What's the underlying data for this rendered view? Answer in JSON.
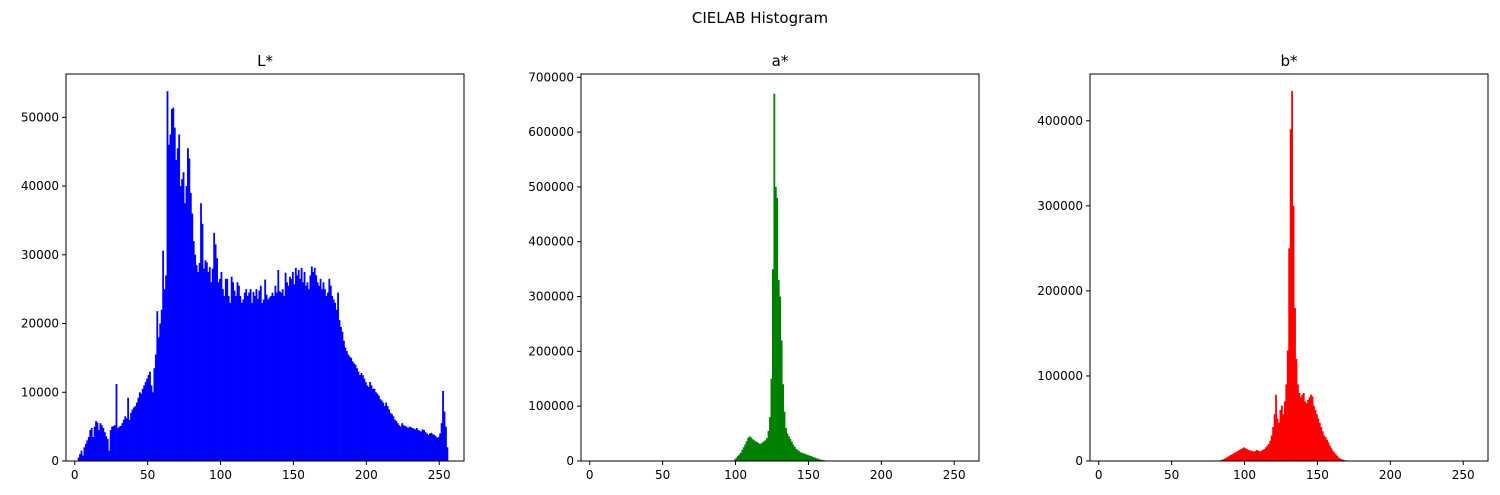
{
  "figure": {
    "suptitle": "CIELAB Histogram"
  },
  "chart_data": [
    {
      "type": "bar",
      "title": "L*",
      "xlabel": "",
      "ylabel": "",
      "color": "#0000ff",
      "xlim": [
        -6,
        267
      ],
      "ylim": [
        0,
        56300
      ],
      "xticks": [
        0,
        50,
        100,
        150,
        200,
        250
      ],
      "yticks": [
        0,
        10000,
        20000,
        30000,
        40000,
        50000
      ],
      "bins": {
        "start": 0,
        "width": 1,
        "values": [
          0,
          0,
          500,
          1000,
          1500,
          800,
          2000,
          2500,
          3000,
          3500,
          4500,
          4800,
          3500,
          5000,
          5800,
          5600,
          4500,
          5500,
          5200,
          4800,
          4200,
          3600,
          3200,
          1500,
          4500,
          5000,
          5100,
          5200,
          11200,
          4800,
          5000,
          5100,
          5500,
          6000,
          6500,
          6200,
          9200,
          6000,
          7000,
          7500,
          7800,
          8000,
          8500,
          9200,
          10000,
          9800,
          10500,
          11000,
          11500,
          12000,
          12500,
          13000,
          11000,
          10000,
          13500,
          15500,
          21800,
          18000,
          20000,
          22000,
          30600,
          25000,
          27000,
          53800,
          46000,
          47500,
          51200,
          51400,
          48500,
          43800,
          45500,
          47500,
          40000,
          41000,
          42000,
          37500,
          40000,
          45500,
          44000,
          39000,
          36000,
          32000,
          30000,
          28500,
          27500,
          28800,
          37500,
          34500,
          28000,
          29200,
          28900,
          27500,
          28200,
          26000,
          28000,
          33200,
          31500,
          29500,
          26000,
          26500,
          27500,
          25000,
          24000,
          26500,
          26500,
          24000,
          23000,
          26800,
          26000,
          24800,
          24000,
          26000,
          25500,
          24000,
          23000,
          23500,
          24500,
          25000,
          24000,
          24500,
          25000,
          23000,
          24600,
          24000,
          25000,
          23600,
          24800,
          25500,
          23000,
          23500,
          26400,
          24200,
          23500,
          23800,
          24000,
          24500,
          24000,
          25500,
          24500,
          27800,
          24700,
          24500,
          25000,
          24000,
          27400,
          26000,
          25500,
          26800,
          26500,
          27500,
          25700,
          28100,
          27000,
          27800,
          26500,
          28100,
          26000,
          27500,
          25500,
          26000,
          25000,
          27000,
          28300,
          27500,
          28100,
          27000,
          26000,
          25500,
          26500,
          25000,
          26000,
          25000,
          24000,
          24500,
          26500,
          25500,
          24000,
          23500,
          23000,
          22000,
          24500,
          20500,
          19500,
          18800,
          17500,
          16500,
          16000,
          15500,
          15200,
          15000,
          14500,
          14200,
          14000,
          13500,
          13000,
          12500,
          12800,
          12500,
          12000,
          11500,
          11000,
          10800,
          11500,
          11000,
          10500,
          10500,
          10000,
          9800,
          9500,
          9000,
          8800,
          8500,
          8000,
          8500,
          8000,
          7500,
          7000,
          6800,
          6500,
          6000,
          5800,
          5500,
          5200,
          5000,
          5500,
          5200,
          5100,
          5000,
          4800,
          5000,
          4900,
          4800,
          4700,
          4600,
          4800,
          4500,
          4400,
          4300,
          4600,
          4500,
          4200,
          4000,
          3800,
          4000,
          4100,
          3900,
          3800,
          3600,
          3400,
          3500,
          4000,
          5500,
          10200,
          7200,
          5000,
          2000
        ]
      }
    },
    {
      "type": "bar",
      "title": "a*",
      "xlabel": "",
      "ylabel": "",
      "color": "#008000",
      "xlim": [
        -6,
        267
      ],
      "ylim": [
        0,
        706000
      ],
      "xticks": [
        0,
        50,
        100,
        150,
        200,
        250
      ],
      "yticks": [
        0,
        100000,
        200000,
        300000,
        400000,
        500000,
        600000,
        700000
      ],
      "bins": {
        "start": 0,
        "width": 1,
        "values": [
          0,
          0,
          0,
          0,
          0,
          0,
          0,
          0,
          0,
          0,
          0,
          0,
          0,
          0,
          0,
          0,
          0,
          0,
          0,
          0,
          0,
          0,
          0,
          0,
          0,
          0,
          0,
          0,
          0,
          0,
          0,
          0,
          0,
          0,
          0,
          0,
          0,
          0,
          0,
          0,
          0,
          0,
          0,
          0,
          0,
          0,
          0,
          0,
          0,
          0,
          0,
          0,
          0,
          0,
          0,
          0,
          0,
          0,
          0,
          0,
          0,
          0,
          0,
          0,
          0,
          0,
          0,
          0,
          0,
          0,
          0,
          0,
          0,
          0,
          0,
          0,
          0,
          0,
          0,
          0,
          0,
          0,
          0,
          0,
          0,
          0,
          0,
          0,
          0,
          0,
          0,
          0,
          0,
          0,
          0,
          0,
          200,
          500,
          1000,
          3000,
          6000,
          9000,
          12000,
          15000,
          20000,
          25000,
          30000,
          36000,
          42000,
          45000,
          43000,
          40000,
          38000,
          36000,
          35000,
          33000,
          31000,
          32000,
          34000,
          36000,
          38000,
          42000,
          55000,
          80000,
          150000,
          350000,
          670000,
          500000,
          480000,
          330000,
          300000,
          220000,
          140000,
          90000,
          60000,
          50000,
          45000,
          40000,
          35000,
          30000,
          26000,
          22000,
          20000,
          18000,
          16000,
          15000,
          14000,
          13000,
          12000,
          11000,
          10000,
          9000,
          8000,
          7000,
          6000,
          5000,
          4000,
          3000,
          2500,
          2000,
          1500,
          1000,
          800,
          600,
          400,
          200,
          100,
          0,
          0,
          0,
          0,
          0,
          0,
          0,
          0,
          0,
          0,
          0,
          0,
          0,
          0,
          0,
          0,
          0,
          0,
          0,
          0,
          0,
          0,
          0,
          0,
          0,
          0,
          0,
          0,
          0,
          0,
          0,
          0,
          0,
          0,
          0,
          0,
          0,
          0,
          0,
          0,
          0,
          0,
          0,
          0,
          0,
          0,
          0,
          0,
          0,
          0,
          0,
          0,
          0,
          0,
          0,
          0,
          0,
          0,
          0,
          0,
          0,
          0,
          0,
          0,
          0,
          0,
          0,
          0,
          0,
          0,
          0,
          0,
          0,
          0,
          0,
          0,
          0,
          0,
          0,
          0,
          0,
          0,
          0,
          0,
          0,
          0,
          0,
          0,
          0,
          0,
          0,
          0,
          0,
          0,
          0,
          0,
          0
        ]
      }
    },
    {
      "type": "bar",
      "title": "b*",
      "xlabel": "",
      "ylabel": "",
      "color": "#ff0000",
      "xlim": [
        -6,
        267
      ],
      "ylim": [
        0,
        455000
      ],
      "xticks": [
        0,
        50,
        100,
        150,
        200,
        250
      ],
      "yticks": [
        0,
        100000,
        200000,
        300000,
        400000
      ],
      "bins": {
        "start": 0,
        "width": 1,
        "values": [
          0,
          0,
          0,
          0,
          0,
          0,
          0,
          0,
          0,
          0,
          0,
          0,
          0,
          0,
          0,
          0,
          0,
          0,
          0,
          0,
          0,
          0,
          0,
          0,
          0,
          0,
          0,
          0,
          0,
          0,
          0,
          0,
          0,
          0,
          0,
          0,
          0,
          0,
          0,
          0,
          0,
          0,
          0,
          0,
          0,
          0,
          0,
          0,
          0,
          0,
          0,
          0,
          0,
          0,
          0,
          0,
          0,
          0,
          0,
          0,
          0,
          0,
          0,
          0,
          0,
          0,
          0,
          0,
          0,
          0,
          0,
          0,
          0,
          0,
          0,
          0,
          0,
          0,
          0,
          0,
          0,
          0,
          500,
          1000,
          1500,
          2000,
          3000,
          4000,
          5000,
          6000,
          7000,
          8000,
          9000,
          10000,
          11000,
          12000,
          13000,
          14000,
          15000,
          16000,
          15000,
          14000,
          13000,
          12500,
          12000,
          11500,
          11000,
          12000,
          13000,
          12000,
          11000,
          12000,
          13000,
          14000,
          16000,
          18000,
          20000,
          24000,
          30000,
          40000,
          55000,
          78000,
          50000,
          45000,
          60000,
          65000,
          55000,
          70000,
          90000,
          130000,
          250000,
          390000,
          435000,
          300000,
          180000,
          120000,
          90000,
          80000,
          75000,
          78000,
          80000,
          70000,
          68000,
          72000,
          75000,
          78000,
          76000,
          65000,
          60000,
          55000,
          50000,
          45000,
          40000,
          35000,
          30000,
          28000,
          25000,
          22000,
          18000,
          15000,
          12000,
          10000,
          8000,
          6000,
          4000,
          3000,
          2000,
          1500,
          1000,
          500,
          200,
          100,
          0,
          0,
          0,
          0,
          0,
          0,
          0,
          0,
          0,
          0,
          0,
          0,
          0,
          0,
          0,
          0,
          0,
          0,
          0,
          0,
          0,
          0,
          0,
          0,
          0,
          0,
          0,
          0,
          0,
          0,
          0,
          0,
          0,
          0,
          0,
          0,
          0,
          0,
          0,
          0,
          0,
          0,
          0,
          0,
          0,
          0,
          0,
          0,
          0,
          0,
          0,
          0,
          0,
          0,
          0,
          0,
          0,
          0,
          0,
          0,
          0,
          0,
          0,
          0,
          0,
          0,
          0,
          0,
          0,
          0,
          0,
          0,
          0,
          0,
          0,
          0,
          0,
          0,
          0,
          0,
          0,
          0,
          0,
          0,
          0
        ]
      }
    }
  ]
}
